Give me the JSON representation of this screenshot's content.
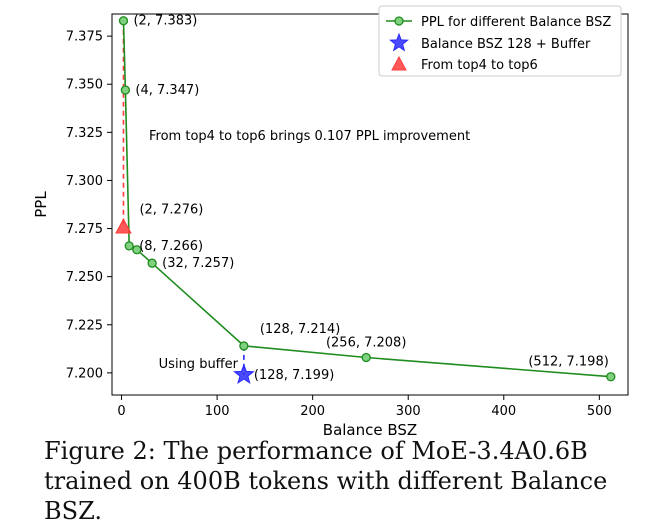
{
  "chart_data": {
    "type": "line",
    "xlabel": "Balance BSZ",
    "ylabel": "PPL",
    "xlim": [
      -10,
      530
    ],
    "ylim": [
      7.1885,
      7.3865
    ],
    "xticks": [
      0,
      100,
      200,
      300,
      400,
      500
    ],
    "xtick_labels": [
      "0",
      "100",
      "200",
      "300",
      "400",
      "500"
    ],
    "yticks": [
      7.2,
      7.225,
      7.25,
      7.275,
      7.3,
      7.325,
      7.35,
      7.375
    ],
    "ytick_labels": [
      "7.200",
      "7.225",
      "7.250",
      "7.275",
      "7.300",
      "7.325",
      "7.350",
      "7.375"
    ],
    "grid": false,
    "legend_position": "top-right",
    "series": [
      {
        "name": "PPL for different Balance BSZ",
        "kind": "line-marker",
        "color": "#1e8c1e",
        "x": [
          2,
          4,
          8,
          16,
          32,
          128,
          256,
          512
        ],
        "y": [
          7.383,
          7.347,
          7.266,
          7.264,
          7.257,
          7.214,
          7.208,
          7.198
        ]
      },
      {
        "name": "Balance BSZ 128 + Buffer",
        "kind": "star",
        "color": "#2a2aff",
        "x": [
          128
        ],
        "y": [
          7.199
        ]
      },
      {
        "name": "From top4 to top6",
        "kind": "triangle",
        "color": "#ff3b3b",
        "x": [
          2
        ],
        "y": [
          7.276
        ]
      }
    ],
    "point_labels": [
      {
        "text": "(2, 7.383)",
        "x": 2,
        "y": 7.383,
        "pos": "right"
      },
      {
        "text": "(4, 7.347)",
        "x": 4,
        "y": 7.347,
        "pos": "right"
      },
      {
        "text": "(2, 7.276)",
        "x": 2,
        "y": 7.276,
        "pos": "above-right"
      },
      {
        "text": "(8, 7.266)",
        "x": 8,
        "y": 7.266,
        "pos": "right"
      },
      {
        "text": "(32, 7.257)",
        "x": 32,
        "y": 7.257,
        "pos": "right"
      },
      {
        "text": "(128, 7.214)",
        "x": 128,
        "y": 7.214,
        "pos": "above-right"
      },
      {
        "text": "(256, 7.208)",
        "x": 256,
        "y": 7.208,
        "pos": "above"
      },
      {
        "text": "(512, 7.198)",
        "x": 512,
        "y": 7.198,
        "pos": "above-left"
      },
      {
        "text": "(128, 7.199)",
        "x": 128,
        "y": 7.199,
        "pos": "right"
      }
    ],
    "annotations": [
      {
        "text": "From top4 to top6 brings 0.107 PPL improvement"
      },
      {
        "text": "Using buffer"
      }
    ],
    "dashed_connectors": [
      {
        "color": "#ff3b3b",
        "from": [
          2,
          7.383
        ],
        "to": [
          2,
          7.276
        ]
      },
      {
        "color": "#2a2aff",
        "from": [
          128,
          7.214
        ],
        "to": [
          128,
          7.199
        ]
      }
    ]
  },
  "caption": "Figure 2: The performance of MoE-3.4A0.6B trained on 400B tokens with different Balance BSZ."
}
